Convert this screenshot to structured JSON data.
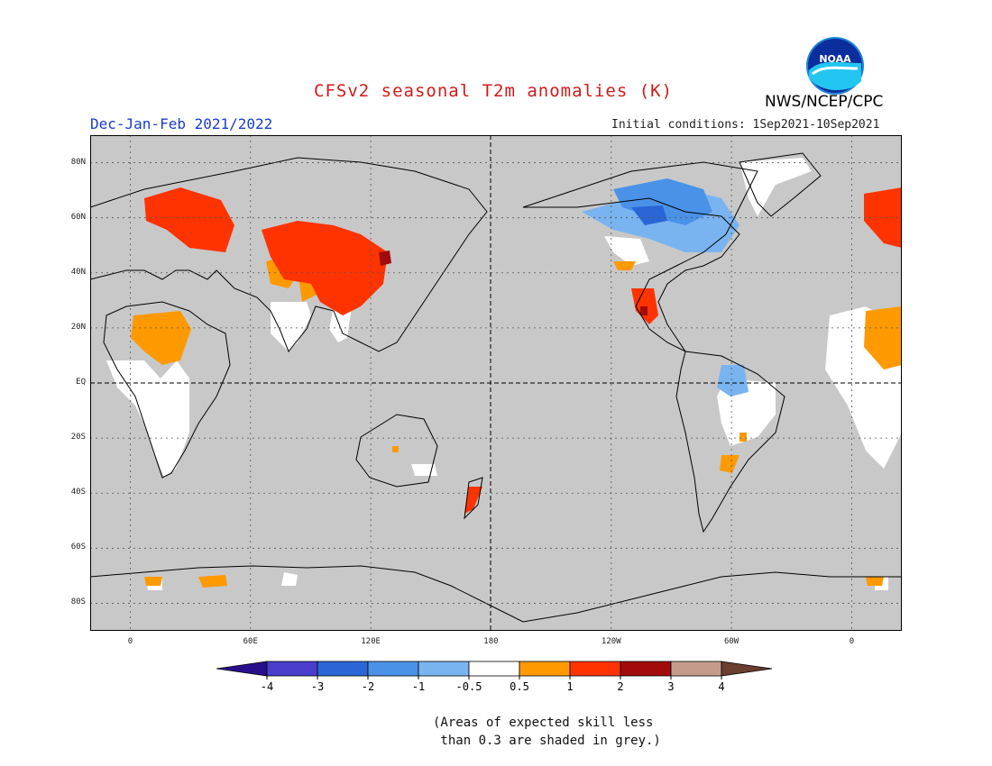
{
  "title": "CFSv2 seasonal T2m anomalies (K)",
  "season": "Dec-Jan-Feb 2021/2022",
  "initial_conditions": "Initial conditions: 1Sep2021-10Sep2021",
  "agency": "NWS/NCEP/CPC",
  "logo": {
    "text": "NOAA",
    "icon": "noaa-logo"
  },
  "map": {
    "lat_labels": [
      "80N",
      "60N",
      "40N",
      "20N",
      "EQ",
      "20S",
      "40S",
      "60S",
      "80S"
    ],
    "lat_values": [
      80,
      60,
      40,
      20,
      0,
      -20,
      -40,
      -60,
      -80
    ],
    "lon_labels": [
      "0",
      "60E",
      "120E",
      "180",
      "120W",
      "60W",
      "0"
    ],
    "lon_values": [
      0,
      60,
      120,
      180,
      240,
      300,
      360
    ],
    "lon_range": [
      -20,
      385
    ],
    "lat_range": [
      -90,
      90
    ],
    "background_color": "#c8c8c8"
  },
  "colorbar": {
    "ticks": [
      "-4",
      "-3",
      "-2",
      "-1",
      "-0.5",
      "0.5",
      "1",
      "2",
      "3",
      "4"
    ],
    "colors": [
      "#2a0f8c",
      "#4a3fcc",
      "#2b66d6",
      "#4a92e8",
      "#7ab4f0",
      "#ffffff",
      "#ff9900",
      "#ff3300",
      "#a20b0b",
      "#c59c8c",
      "#6a3e30"
    ]
  },
  "note": "(Areas of expected skill less\n than 0.3 are shaded in grey.)"
}
